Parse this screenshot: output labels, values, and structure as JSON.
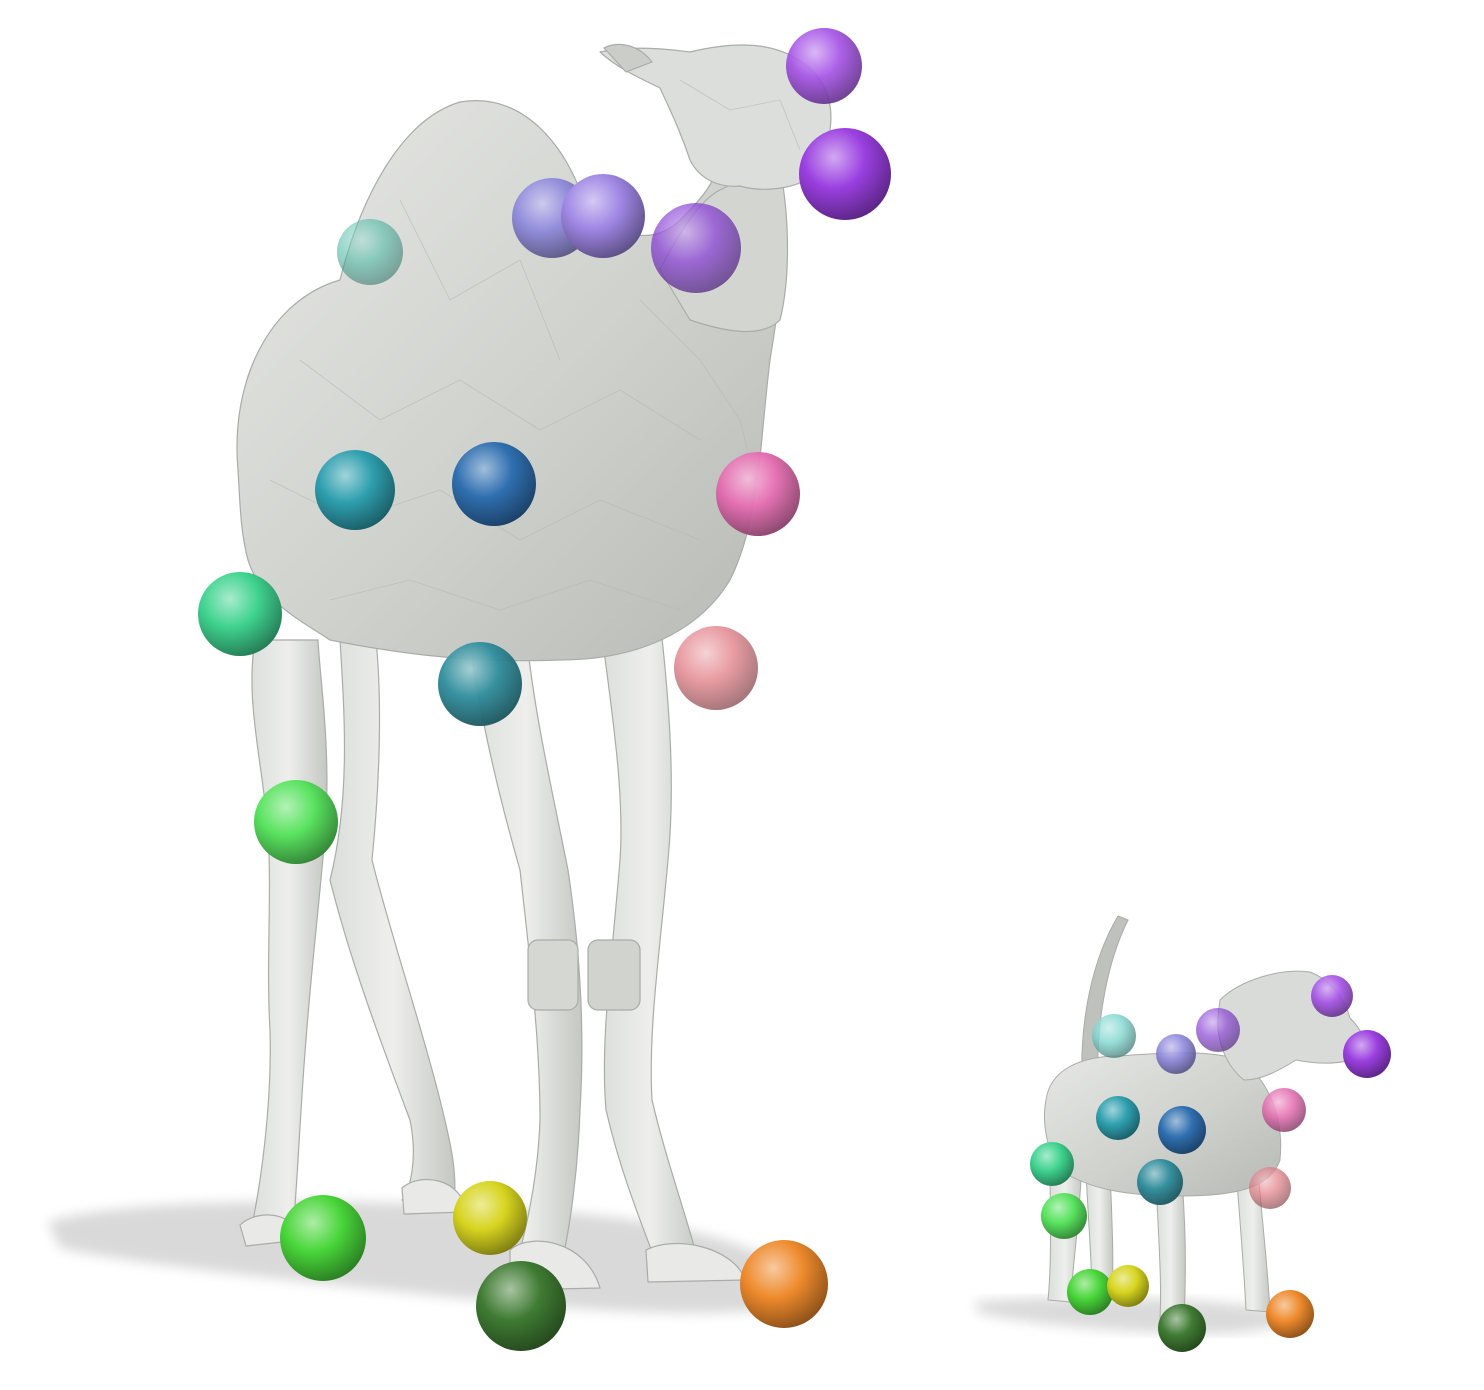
{
  "scene": {
    "background": "#ffffff",
    "mesh_color": "#d4d6d2",
    "mesh_edge_color": "#a7aaa6",
    "shadow_color": "#dcdcdc"
  },
  "figures": [
    {
      "name": "camel",
      "markers": [
        {
          "id": "head-top",
          "color": "#a44fe6"
        },
        {
          "id": "muzzle",
          "color": "#9a3fe0"
        },
        {
          "id": "neck-upper",
          "color": "#8a44d6"
        },
        {
          "id": "shoulder-a",
          "color": "#8c86dc"
        },
        {
          "id": "shoulder-b",
          "color": "#9f86e4"
        },
        {
          "id": "back-hump",
          "color": "#45b8a4"
        },
        {
          "id": "hip-teal",
          "color": "#2e9fae"
        },
        {
          "id": "belly-blue",
          "color": "#2f6fb0"
        },
        {
          "id": "chest-pink",
          "color": "#e46bb0"
        },
        {
          "id": "tail-mint",
          "color": "#3fd38f"
        },
        {
          "id": "belly-teal",
          "color": "#2e8d9c"
        },
        {
          "id": "front-knee-rose",
          "color": "#e07a82"
        },
        {
          "id": "hind-knee-green",
          "color": "#59e35f"
        },
        {
          "id": "hind-foot-green",
          "color": "#49d63a"
        },
        {
          "id": "hind-foot-yellow",
          "color": "#d7d41f"
        },
        {
          "id": "front-foot-darkgreen",
          "color": "#3f7b33"
        },
        {
          "id": "front-foot-orange",
          "color": "#ee8a2c"
        }
      ]
    },
    {
      "name": "dog",
      "markers": [
        {
          "id": "head-top",
          "color": "#a44fe6"
        },
        {
          "id": "muzzle",
          "color": "#9a3fe0"
        },
        {
          "id": "neck",
          "color": "#8a44d6"
        },
        {
          "id": "shoulder",
          "color": "#8c86dc"
        },
        {
          "id": "back",
          "color": "#7ed6cf"
        },
        {
          "id": "hip-teal",
          "color": "#2e9fae"
        },
        {
          "id": "belly-blue",
          "color": "#2f6fb0"
        },
        {
          "id": "chest-pink",
          "color": "#e46bb0"
        },
        {
          "id": "tail-mint",
          "color": "#3fd38f"
        },
        {
          "id": "belly-teal",
          "color": "#2e8d9c"
        },
        {
          "id": "front-knee-rose",
          "color": "#e07a82"
        },
        {
          "id": "hind-knee-green",
          "color": "#59e35f"
        },
        {
          "id": "hind-foot-green",
          "color": "#49d63a"
        },
        {
          "id": "hind-foot-yellow",
          "color": "#d7d41f"
        },
        {
          "id": "front-foot-darkgreen",
          "color": "#3f7b33"
        },
        {
          "id": "front-foot-orange",
          "color": "#ee8a2c"
        }
      ]
    }
  ]
}
